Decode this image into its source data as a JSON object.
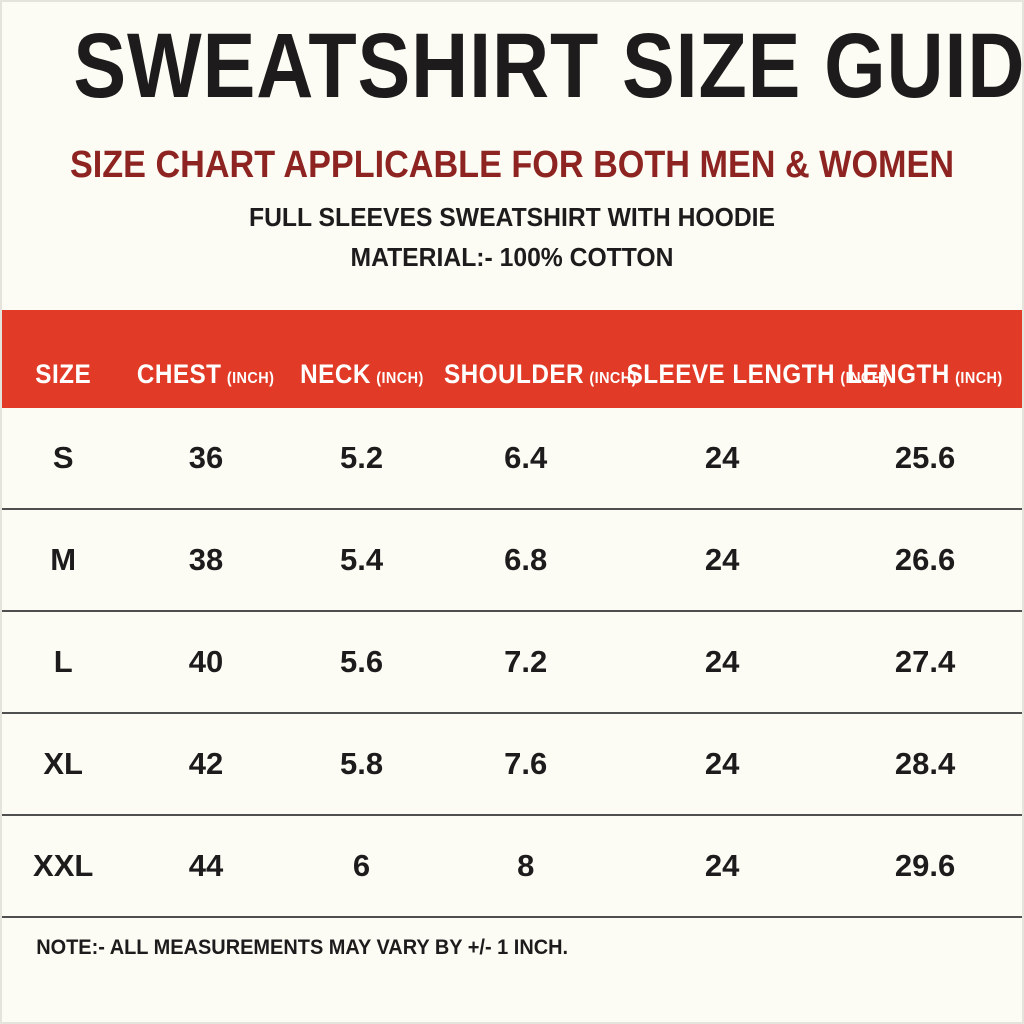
{
  "page": {
    "title": "SWEATSHIRT SIZE GUIDE",
    "subtitle": "SIZE CHART APPLICABLE FOR BOTH MEN & WOMEN",
    "description": "FULL SLEEVES SWEATSHIRT WITH HOODIE",
    "material": "MATERIAL:- 100% COTTON",
    "note": "NOTE:- ALL MEASUREMENTS MAY VARY BY +/- 1 INCH."
  },
  "colors": {
    "accent_red": "#e13b27",
    "subtitle_maroon": "#8e2421",
    "text_black": "#1d1b1c",
    "background": "#fcfcf4"
  },
  "table": {
    "headers": [
      {
        "label": "SIZE",
        "unit": ""
      },
      {
        "label": "CHEST",
        "unit": "(INCH)"
      },
      {
        "label": "NECK",
        "unit": "(INCH)"
      },
      {
        "label": "SHOULDER",
        "unit": "(INCH)"
      },
      {
        "label": "SLEEVE LENGTH",
        "unit": "(INCH)"
      },
      {
        "label": "LENGTH",
        "unit": "(INCH)"
      }
    ],
    "rows": [
      [
        "S",
        "36",
        "5.2",
        "6.4",
        "24",
        "25.6"
      ],
      [
        "M",
        "38",
        "5.4",
        "6.8",
        "24",
        "26.6"
      ],
      [
        "L",
        "40",
        "5.6",
        "7.2",
        "24",
        "27.4"
      ],
      [
        "XL",
        "42",
        "5.8",
        "7.6",
        "24",
        "28.4"
      ],
      [
        "XXL",
        "44",
        "6",
        "8",
        "24",
        "29.6"
      ]
    ]
  },
  "chart_data": {
    "type": "table",
    "title": "SWEATSHIRT SIZE GUIDE",
    "subtitle": "SIZE CHART APPLICABLE FOR BOTH MEN & WOMEN",
    "columns": [
      "SIZE",
      "CHEST (INCH)",
      "NECK (INCH)",
      "SHOULDER (INCH)",
      "SLEEVE LENGTH (INCH)",
      "LENGTH (INCH)"
    ],
    "rows": [
      [
        "S",
        36,
        5.2,
        6.4,
        24,
        25.6
      ],
      [
        "M",
        38,
        5.4,
        6.8,
        24,
        26.6
      ],
      [
        "L",
        40,
        5.6,
        7.2,
        24,
        27.4
      ],
      [
        "XL",
        42,
        5.8,
        7.6,
        24,
        28.4
      ],
      [
        "XXL",
        44,
        6,
        8,
        24,
        29.6
      ]
    ],
    "footnote": "NOTE:- ALL MEASUREMENTS MAY VARY BY +/- 1 INCH."
  }
}
